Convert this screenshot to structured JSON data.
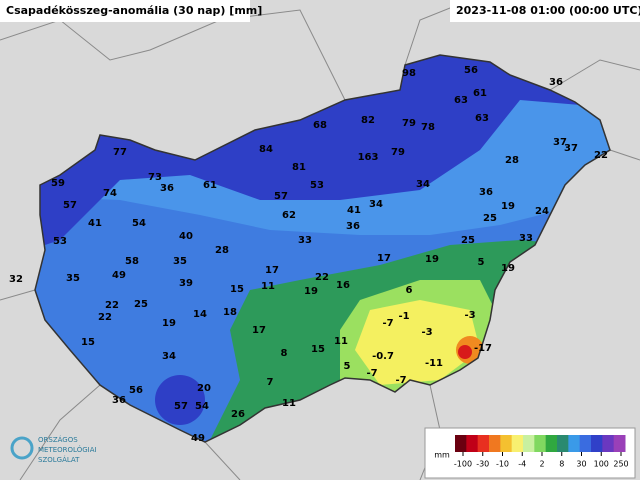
{
  "header": {
    "title": "Csapadékösszeg-anomália (30 nap) [mm]",
    "timestamp": "2023-11-08 01:00 (00:00 UTC)"
  },
  "stations": [
    98,
    56,
    36,
    61,
    63,
    63,
    68,
    82,
    79,
    78,
    37,
    37,
    22,
    84,
    163,
    79,
    28,
    77,
    81,
    73,
    59,
    36,
    61,
    53,
    34,
    36,
    74,
    57,
    57,
    41,
    34,
    19,
    24,
    62,
    41,
    54,
    36,
    25,
    40,
    33,
    25,
    33,
    53,
    28,
    58,
    35,
    17,
    19,
    5,
    19,
    49,
    17,
    35,
    22,
    16,
    32,
    39,
    15,
    11,
    19,
    6,
    22,
    25,
    22,
    14,
    18,
    -1,
    -7,
    -3,
    19,
    17,
    -3,
    15,
    11,
    -17,
    8,
    15,
    -0.7,
    -11,
    34,
    5,
    -7,
    -7,
    7,
    56,
    20,
    36,
    11,
    57,
    54,
    26,
    49
  ],
  "legend": {
    "unit": "mm",
    "labels": [
      -100,
      -30,
      -10,
      -4,
      2,
      8,
      30,
      100,
      250
    ]
  },
  "logo": [
    "ORSZÁGOS",
    "METEOROLÓGIAI",
    "SZOLGÁLAT"
  ]
}
